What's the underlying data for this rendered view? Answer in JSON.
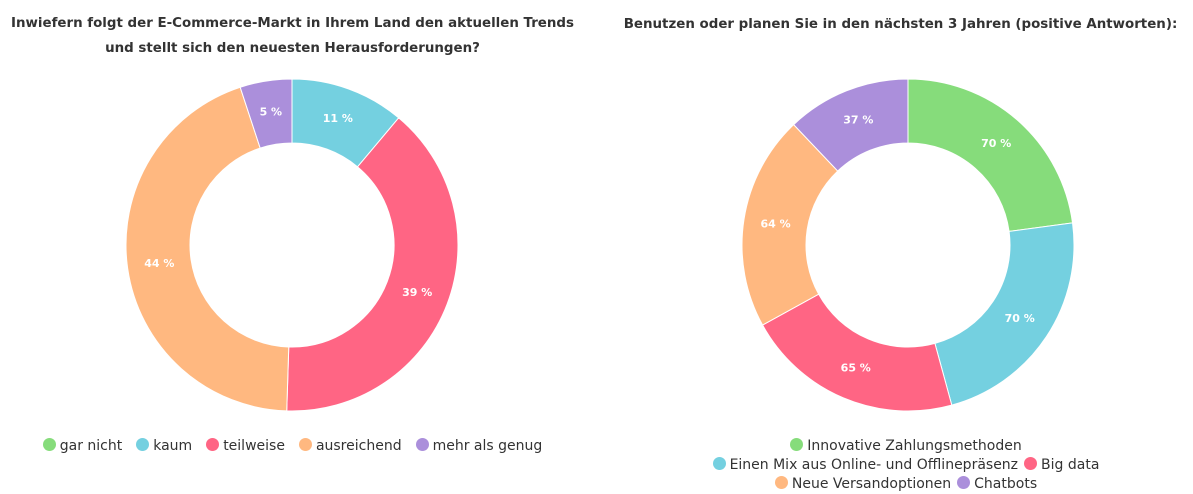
{
  "chart_data": [
    {
      "type": "pie",
      "title": "Inwiefern folgt der E-Commerce-Markt in Ihrem Land den aktuellen Trends\nund stellt sich den neuesten Herausforderungen?",
      "categories": [
        "gar nicht",
        "kaum",
        "teilweise",
        "ausreichend",
        "mehr als genug"
      ],
      "values": [
        0,
        11,
        39,
        44,
        5
      ],
      "labels": [
        "",
        "11 %",
        "39 %",
        "44 %",
        "5 %"
      ],
      "colors": [
        "#86dc7b",
        "#74d0e0",
        "#ff6584",
        "#ffb880",
        "#ab8fdb"
      ],
      "legend_position": "bottom"
    },
    {
      "type": "pie",
      "title": "Benutzen oder planen Sie in den nächsten 3 Jahren (positive Antworten):",
      "categories": [
        "Innovative Zahlungsmethoden",
        "Einen Mix aus Online- und Offlinepräsenz",
        "Big data",
        "Neue Versandoptionen",
        "Chatbots"
      ],
      "values": [
        70,
        70,
        65,
        64,
        37
      ],
      "labels": [
        "70 %",
        "70 %",
        "65 %",
        "64 %",
        "37 %"
      ],
      "colors": [
        "#86dc7b",
        "#74d0e0",
        "#ff6584",
        "#ffb880",
        "#ab8fdb"
      ],
      "legend_position": "bottom"
    }
  ]
}
